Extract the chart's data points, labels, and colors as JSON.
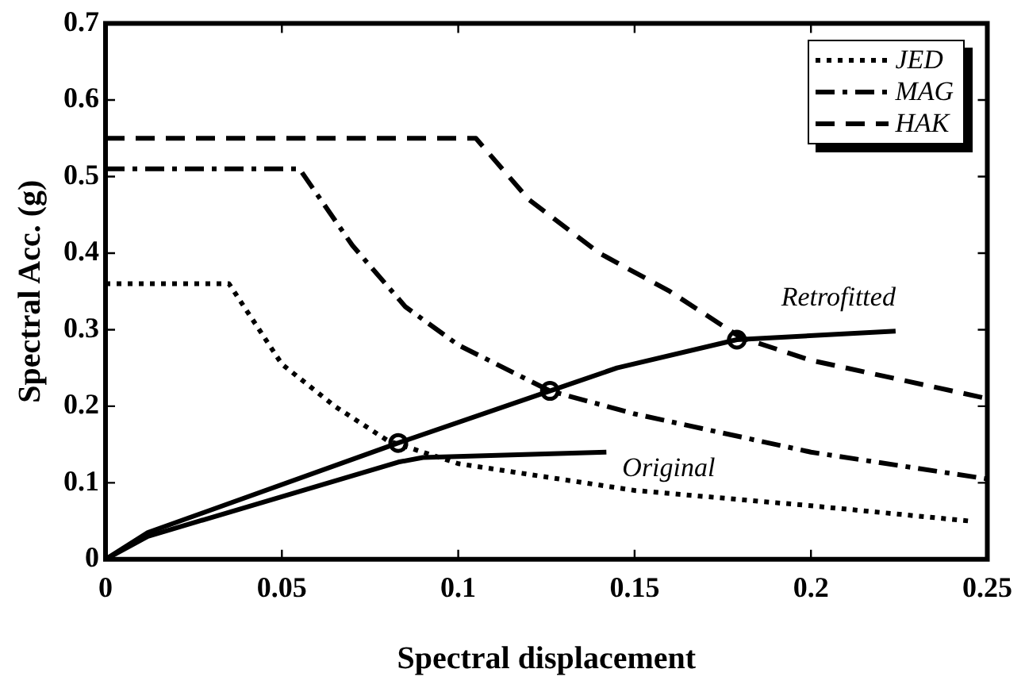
{
  "chart_data": {
    "type": "line",
    "xlabel": "Spectral displacement",
    "ylabel": "Spectral Acc. (g)",
    "xlim": [
      0,
      0.25
    ],
    "xticks": [
      0,
      0.05,
      0.1,
      0.15,
      0.2,
      0.25
    ],
    "ylim": [
      0,
      0.7
    ],
    "yticks": [
      0,
      0.1,
      0.2,
      0.3,
      0.4,
      0.5,
      0.6,
      0.7
    ],
    "grid": false,
    "legend": "top right",
    "marker": "none",
    "series": [
      {
        "name": "JED",
        "color": "#000000",
        "line_style": "dotted",
        "x": [
          0,
          0.035,
          0.05,
          0.065,
          0.08,
          0.1,
          0.15,
          0.2,
          0.245
        ],
        "values": [
          0.36,
          0.36,
          0.255,
          0.2,
          0.155,
          0.125,
          0.09,
          0.07,
          0.05
        ]
      },
      {
        "name": "MAG",
        "color": "#000000",
        "line_style": "dashdot",
        "x": [
          0,
          0.055,
          0.07,
          0.085,
          0.1,
          0.126,
          0.15,
          0.2,
          0.25
        ],
        "values": [
          0.51,
          0.51,
          0.41,
          0.33,
          0.28,
          0.22,
          0.19,
          0.14,
          0.105
        ]
      },
      {
        "name": "HAK",
        "color": "#000000",
        "line_style": "dashed",
        "x": [
          0,
          0.105,
          0.12,
          0.14,
          0.16,
          0.18,
          0.2,
          0.225,
          0.25
        ],
        "values": [
          0.55,
          0.55,
          0.47,
          0.4,
          0.35,
          0.29,
          0.26,
          0.235,
          0.21
        ]
      },
      {
        "name": "Retrofitted",
        "color": "#000000",
        "line_style": "solid",
        "x": [
          0,
          0.012,
          0.083,
          0.126,
          0.145,
          0.179,
          0.224
        ],
        "values": [
          0,
          0.035,
          0.152,
          0.22,
          0.25,
          0.287,
          0.298
        ]
      },
      {
        "name": "Original",
        "color": "#000000",
        "line_style": "solid",
        "x": [
          0,
          0.012,
          0.083,
          0.09,
          0.142
        ],
        "values": [
          0,
          0.03,
          0.127,
          0.133,
          0.14
        ]
      },
      {
        "type": "scatter",
        "color": "#000000",
        "marker": "circle",
        "x": [
          0.083,
          0.126,
          0.179
        ],
        "values": [
          0.152,
          0.22,
          0.287
        ]
      }
    ]
  }
}
